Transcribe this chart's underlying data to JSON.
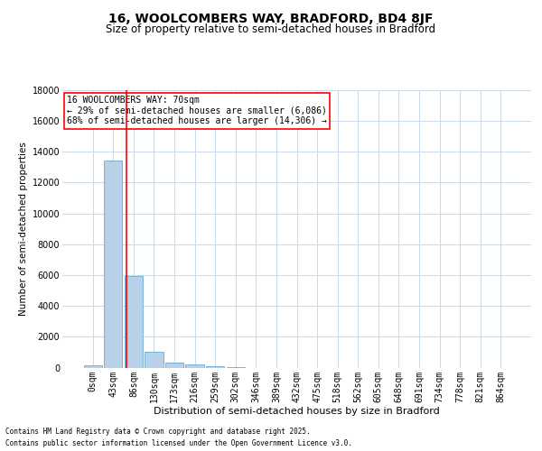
{
  "title": "16, WOOLCOMBERS WAY, BRADFORD, BD4 8JF",
  "subtitle": "Size of property relative to semi-detached houses in Bradford",
  "xlabel": "Distribution of semi-detached houses by size in Bradford",
  "ylabel": "Number of semi-detached properties",
  "bar_color": "#b8d0e8",
  "bar_edge_color": "#6aaad4",
  "background_color": "#ffffff",
  "grid_color": "#c8daea",
  "categories": [
    "0sqm",
    "43sqm",
    "86sqm",
    "130sqm",
    "173sqm",
    "216sqm",
    "259sqm",
    "302sqm",
    "346sqm",
    "389sqm",
    "432sqm",
    "475sqm",
    "518sqm",
    "562sqm",
    "605sqm",
    "648sqm",
    "691sqm",
    "734sqm",
    "778sqm",
    "821sqm",
    "864sqm"
  ],
  "values": [
    170,
    13450,
    5970,
    1040,
    300,
    180,
    80,
    20,
    0,
    0,
    0,
    0,
    0,
    0,
    0,
    0,
    0,
    0,
    0,
    0,
    0
  ],
  "annotation_title": "16 WOOLCOMBERS WAY: 70sqm",
  "annotation_line1": "← 29% of semi-detached houses are smaller (6,086)",
  "annotation_line2": "68% of semi-detached houses are larger (14,306) →",
  "footer_line1": "Contains HM Land Registry data © Crown copyright and database right 2025.",
  "footer_line2": "Contains public sector information licensed under the Open Government Licence v3.0.",
  "ylim": [
    0,
    18000
  ],
  "yticks": [
    0,
    2000,
    4000,
    6000,
    8000,
    10000,
    12000,
    14000,
    16000,
    18000
  ],
  "vline_x": 1.63,
  "title_fontsize": 10,
  "subtitle_fontsize": 8.5,
  "xlabel_fontsize": 8,
  "ylabel_fontsize": 7.5,
  "tick_fontsize": 7,
  "annotation_fontsize": 7,
  "footer_fontsize": 5.5
}
